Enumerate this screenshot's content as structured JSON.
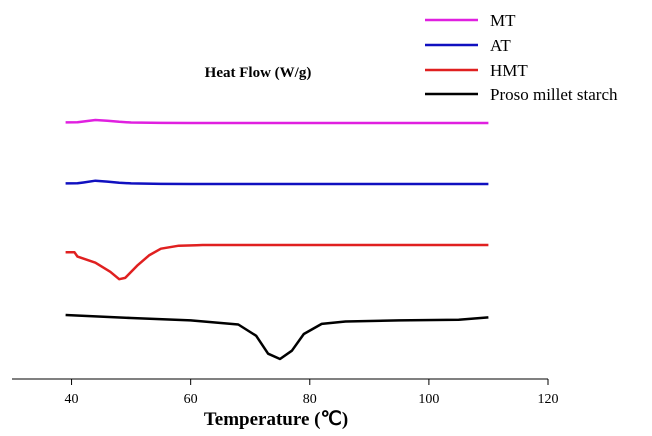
{
  "chart_data": {
    "type": "line",
    "title": "",
    "xlabel": "Temperature (℃)",
    "ylabel": "Heat Flow (W/g)",
    "xlim": [
      30,
      120
    ],
    "xticks": [
      40,
      60,
      80,
      100,
      120
    ],
    "grid": false,
    "legend_position": "top-right",
    "series": [
      {
        "name": "MT",
        "color": "#e020e0",
        "points": [
          [
            39,
            0.1
          ],
          [
            41,
            0.11
          ],
          [
            42,
            0.25
          ],
          [
            44,
            0.5
          ],
          [
            46,
            0.38
          ],
          [
            48,
            0.2
          ],
          [
            50,
            0.08
          ],
          [
            55,
            0.02
          ],
          [
            60,
            0.0
          ],
          [
            80,
            0.0
          ],
          [
            110,
            0.0
          ]
        ]
      },
      {
        "name": "AT",
        "color": "#1010c0",
        "points": [
          [
            39,
            0.1
          ],
          [
            41,
            0.12
          ],
          [
            42,
            0.25
          ],
          [
            44,
            0.55
          ],
          [
            46,
            0.4
          ],
          [
            48,
            0.22
          ],
          [
            50,
            0.1
          ],
          [
            55,
            0.02
          ],
          [
            60,
            0.0
          ],
          [
            80,
            0.0
          ],
          [
            110,
            0.0
          ]
        ]
      },
      {
        "name": "HMT",
        "color": "#e02020",
        "points": [
          [
            39,
            -1.2
          ],
          [
            40.5,
            -1.2
          ],
          [
            41,
            -1.9
          ],
          [
            44,
            -2.9
          ],
          [
            46.5,
            -4.4
          ],
          [
            48,
            -5.6
          ],
          [
            49,
            -5.4
          ],
          [
            51,
            -3.4
          ],
          [
            53,
            -1.7
          ],
          [
            55,
            -0.6
          ],
          [
            58,
            -0.12
          ],
          [
            61,
            -0.03
          ],
          [
            62,
            0.0
          ],
          [
            80,
            0.0
          ],
          [
            110,
            0.0
          ]
        ]
      },
      {
        "name": "Proso millet starch",
        "color": "#000000",
        "points": [
          [
            39,
            0.0
          ],
          [
            50,
            -0.5
          ],
          [
            60,
            -0.9
          ],
          [
            68,
            -1.6
          ],
          [
            71,
            -3.5
          ],
          [
            73,
            -6.5
          ],
          [
            75,
            -7.4
          ],
          [
            77,
            -6.0
          ],
          [
            79,
            -3.2
          ],
          [
            82,
            -1.5
          ],
          [
            86,
            -1.1
          ],
          [
            95,
            -0.9
          ],
          [
            105,
            -0.8
          ],
          [
            110,
            -0.4
          ]
        ]
      }
    ]
  }
}
